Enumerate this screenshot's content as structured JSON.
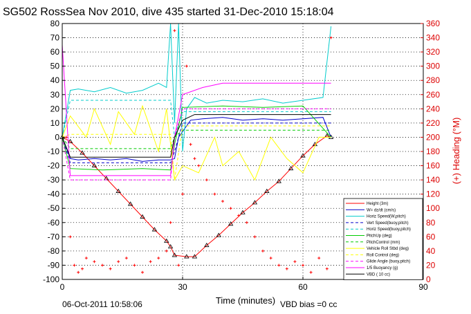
{
  "chart_data": {
    "type": "line",
    "title": "SG502 RossSea Nov 2010, dive 435 started 31-Dec-2010 15:18:04",
    "xlabel": "Time (minutes)",
    "ylabel_right": "(+) Heading (°M)",
    "xlim": [
      0,
      90
    ],
    "ylim": [
      -100,
      80
    ],
    "ylim_right": [
      0,
      360
    ],
    "xticks": [
      0,
      30,
      60,
      90
    ],
    "yticks": [
      -100,
      -90,
      -80,
      -70,
      -60,
      -50,
      -40,
      -30,
      -20,
      -10,
      0,
      10,
      20,
      30,
      40,
      50,
      60,
      70,
      80
    ],
    "yticks_right": [
      0,
      20,
      40,
      60,
      80,
      100,
      120,
      140,
      160,
      180,
      200,
      220,
      240,
      260,
      280,
      300,
      320,
      340,
      360
    ],
    "grid": true,
    "legend_position": "lower-right",
    "series": [
      {
        "name": "Height (3m)",
        "color": "#ff0000",
        "style": "solid",
        "x": [
          0,
          2,
          5,
          8,
          11,
          14,
          17,
          20,
          23,
          26,
          27,
          28,
          31,
          33,
          36,
          39,
          42,
          45,
          48,
          51,
          54,
          57,
          60,
          63,
          66,
          67
        ],
        "y": [
          0,
          -3,
          -11,
          -20,
          -29,
          -38,
          -47,
          -56,
          -65,
          -73,
          -77,
          -83,
          -84,
          -84,
          -76,
          -69,
          -61,
          -53,
          -46,
          -38,
          -31,
          -22,
          -13,
          -5,
          1,
          0
        ]
      },
      {
        "name": "W= dz/dt (cm/s)",
        "color": "#0000cc",
        "style": "solid",
        "x": [
          0,
          2,
          4,
          8,
          12,
          16,
          20,
          24,
          27,
          28,
          29,
          32,
          35,
          40,
          45,
          50,
          55,
          60,
          65,
          67
        ],
        "y": [
          0,
          -15,
          -16,
          -15,
          -16,
          -15,
          -17,
          -16,
          -16,
          -15,
          0,
          12,
          13,
          14,
          12,
          13,
          12,
          13,
          14,
          0
        ]
      },
      {
        "name": "Horiz Speed(W,pitch)",
        "color": "#00cccc",
        "style": "solid",
        "x": [
          0,
          2,
          4,
          8,
          12,
          16,
          20,
          24,
          26,
          27,
          28,
          29,
          30,
          31,
          33,
          36,
          40,
          45,
          50,
          55,
          60,
          65,
          67
        ],
        "y": [
          0,
          33,
          34,
          32,
          35,
          31,
          33,
          38,
          35,
          80,
          10,
          80,
          -10,
          20,
          28,
          24,
          26,
          25,
          27,
          24,
          26,
          28,
          78
        ]
      },
      {
        "name": "Vert Speed(buoy,pitch)",
        "color": "#0000cc",
        "style": "dashed",
        "x": [
          0,
          2,
          27,
          28,
          30,
          67
        ],
        "y": [
          0,
          -18,
          -18,
          -10,
          10,
          10
        ]
      },
      {
        "name": "Horiz Speed(buoy,pitch)",
        "color": "#00cccc",
        "style": "dashed",
        "x": [
          0,
          2,
          27,
          28,
          30,
          67
        ],
        "y": [
          0,
          26,
          26,
          0,
          18,
          18
        ]
      },
      {
        "name": "PitchUp (deg)",
        "color": "#00cc00",
        "style": "solid",
        "x": [
          0,
          2,
          10,
          20,
          27,
          28,
          30,
          40,
          50,
          60,
          67
        ],
        "y": [
          0,
          -22,
          -23,
          -22,
          -23,
          -5,
          21,
          22,
          21,
          22,
          0
        ]
      },
      {
        "name": "PitchControl (mm)",
        "color": "#00cc00",
        "style": "dashed",
        "x": [
          0,
          2,
          27,
          28,
          30,
          67
        ],
        "y": [
          0,
          -8,
          -8,
          0,
          5,
          5
        ]
      },
      {
        "name": "Vehicle Roll Stbd (deg)",
        "color": "#ffff00",
        "style": "solid",
        "x": [
          0,
          2,
          6,
          8,
          12,
          14,
          18,
          20,
          24,
          26,
          28,
          30,
          34,
          38,
          40,
          44,
          48,
          52,
          56,
          60,
          64,
          67
        ],
        "y": [
          0,
          15,
          0,
          20,
          -5,
          18,
          2,
          22,
          -10,
          20,
          -30,
          -20,
          -25,
          0,
          -20,
          -10,
          -30,
          0,
          -15,
          -25,
          0,
          0
        ]
      },
      {
        "name": "Roll Control (deg)",
        "color": "#ffff00",
        "style": "dashed",
        "x": [
          0,
          2,
          27,
          28,
          30,
          67
        ],
        "y": [
          0,
          2,
          2,
          -30,
          8,
          8
        ]
      },
      {
        "name": "Glide Angle (buoy,pitch)",
        "color": "#ff00ff",
        "style": "dashed",
        "x": [
          0,
          2,
          27,
          28,
          30,
          67
        ],
        "y": [
          0,
          -30,
          -30,
          0,
          20,
          20
        ]
      },
      {
        "name": "1/5 Buoyancy (g)",
        "color": "#ff00ff",
        "style": "solid",
        "x": [
          0,
          2,
          27,
          28,
          30,
          35,
          40,
          67
        ],
        "y": [
          65,
          -27,
          -27,
          0,
          30,
          35,
          38,
          38
        ]
      },
      {
        "name": "VBD ( 10 cc)",
        "color": "#000000",
        "style": "solid",
        "x": [
          0,
          2,
          27,
          28,
          30,
          33,
          67
        ],
        "y": [
          0,
          -14,
          -14,
          0,
          12,
          16,
          16
        ]
      },
      {
        "name": "(+) Heading (°M)",
        "color": "#ff0000",
        "style": "markers",
        "axis": "right",
        "x": [
          1,
          2,
          3,
          4,
          5,
          6,
          8,
          10,
          12,
          14,
          16,
          18,
          20,
          22,
          24,
          26,
          27,
          28,
          29,
          30,
          31,
          32,
          33,
          34,
          36,
          38,
          40,
          42,
          44,
          46,
          48,
          50,
          52,
          54,
          56,
          58,
          60,
          62,
          64,
          66,
          67
        ],
        "y": [
          200,
          60,
          20,
          10,
          15,
          30,
          25,
          20,
          15,
          25,
          30,
          20,
          10,
          25,
          30,
          40,
          80,
          350,
          20,
          120,
          300,
          190,
          170,
          160,
          140,
          120,
          110,
          100,
          90,
          80,
          60,
          40,
          30,
          20,
          15,
          25,
          20,
          10,
          30,
          15,
          340
        ]
      }
    ]
  },
  "footer": {
    "timestamp": "06-Oct-2011 10:58:06",
    "vbd_bias": "VBD bias =0 cc"
  }
}
